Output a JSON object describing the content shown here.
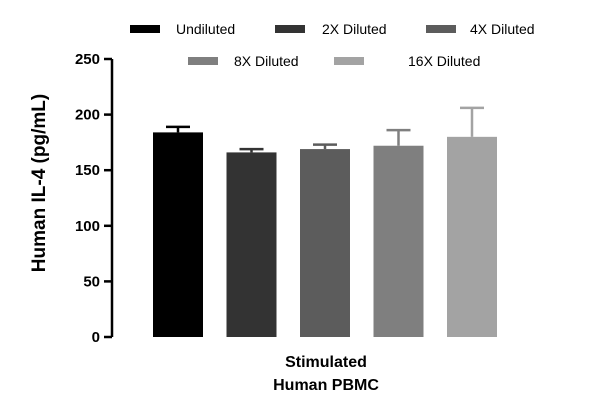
{
  "chart_data": {
    "type": "bar",
    "title": "",
    "ylabel": "Human IL-4 (pg/mL)",
    "xlabel": "",
    "category_label_lines": [
      "Stimulated",
      "Human PBMC"
    ],
    "ylim": [
      0,
      250
    ],
    "yticks": [
      0,
      50,
      100,
      150,
      200,
      250
    ],
    "ytick_labels": [
      "0",
      "50",
      "100",
      "150",
      "200",
      "250"
    ],
    "grid": false,
    "legend": "top",
    "series": [
      {
        "name": "Undiluted",
        "value": 184,
        "error": 5,
        "color": "#000000"
      },
      {
        "name": "2X Diluted",
        "value": 166,
        "error": 3,
        "color": "#333333"
      },
      {
        "name": "4X Diluted",
        "value": 169,
        "error": 4,
        "color": "#5c5c5c"
      },
      {
        "name": "8X Diluted",
        "value": 172,
        "error": 14,
        "color": "#7f7f7f"
      },
      {
        "name": "16X Diluted",
        "value": 180,
        "error": 26,
        "color": "#a3a3a3"
      }
    ]
  }
}
